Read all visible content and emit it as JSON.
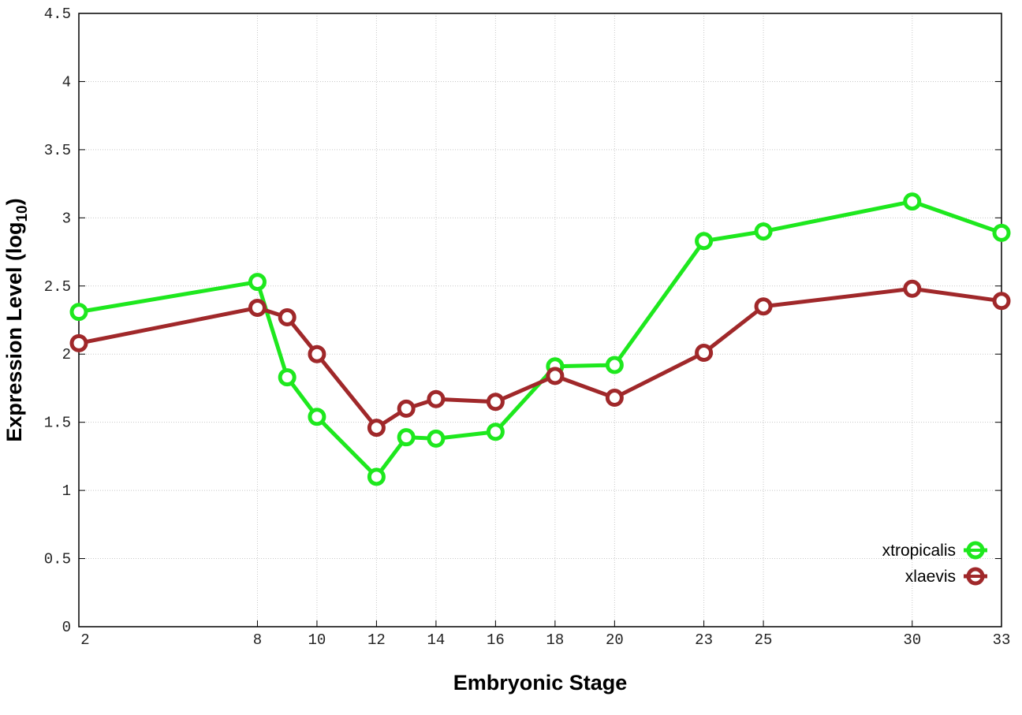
{
  "chart_data": {
    "type": "line",
    "title": "",
    "xlabel": "Embryonic Stage",
    "ylabel": "Expression Level (log",
    "ylabel_subscript": "10",
    "ylabel_close": ")",
    "xlim": [
      2,
      33
    ],
    "ylim": [
      0,
      4.5
    ],
    "x_ticks": [
      2,
      8,
      10,
      12,
      14,
      16,
      18,
      20,
      23,
      25,
      30,
      33
    ],
    "y_ticks": [
      "0",
      "0.5",
      "1",
      "1.5",
      "2",
      "2.5",
      "3",
      "3.5",
      "4",
      "4.5"
    ],
    "grid": true,
    "legend_position": "bottom-right",
    "x": [
      2,
      8,
      9,
      10,
      12,
      13,
      14,
      16,
      18,
      20,
      23,
      25,
      30,
      33
    ],
    "series": [
      {
        "name": "xtropicalis",
        "color": "#1ee81e",
        "values": [
          2.31,
          2.53,
          1.83,
          1.54,
          1.1,
          1.39,
          1.38,
          1.43,
          1.91,
          1.92,
          2.83,
          2.9,
          3.12,
          2.89
        ]
      },
      {
        "name": "xlaevis",
        "color": "#a0282a",
        "values": [
          2.08,
          2.34,
          2.27,
          2.0,
          1.46,
          1.6,
          1.67,
          1.65,
          1.84,
          1.68,
          2.01,
          2.35,
          2.48,
          2.39
        ]
      }
    ]
  }
}
